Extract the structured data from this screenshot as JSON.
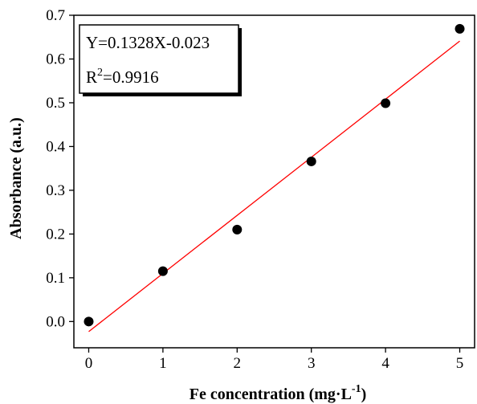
{
  "chart_data": {
    "type": "scatter",
    "xlabel": "Fe concentration (mg·L",
    "xlabel_sup": "-1",
    "xlabel_suffix": ")",
    "ylabel": "Absorbance (a.u.)",
    "xlim": [
      -0.2,
      5.2
    ],
    "ylim": [
      -0.06,
      0.7
    ],
    "xticks": [
      0,
      1,
      2,
      3,
      4,
      5
    ],
    "xtick_labels": [
      "0",
      "1",
      "2",
      "3",
      "4",
      "5"
    ],
    "yticks": [
      0.0,
      0.1,
      0.2,
      0.3,
      0.4,
      0.5,
      0.6,
      0.7
    ],
    "ytick_labels": [
      "0.0",
      "0.1",
      "0.2",
      "0.3",
      "0.4",
      "0.5",
      "0.6",
      "0.7"
    ],
    "grid": false,
    "points": [
      {
        "x": 0,
        "y": 0.0
      },
      {
        "x": 1,
        "y": 0.115
      },
      {
        "x": 2,
        "y": 0.21
      },
      {
        "x": 3,
        "y": 0.366
      },
      {
        "x": 4,
        "y": 0.499
      },
      {
        "x": 5,
        "y": 0.669
      }
    ],
    "fit": {
      "slope": 0.1328,
      "intercept": -0.023,
      "x_range": [
        0,
        5
      ],
      "color": "#ff0000"
    },
    "annotation": {
      "equation": "Y=0.1328X-0.023",
      "r2_prefix": "R",
      "r2_sup": "2",
      "r2_value": "=0.9916",
      "placement": "top-left"
    },
    "marker_color": "#000000"
  }
}
